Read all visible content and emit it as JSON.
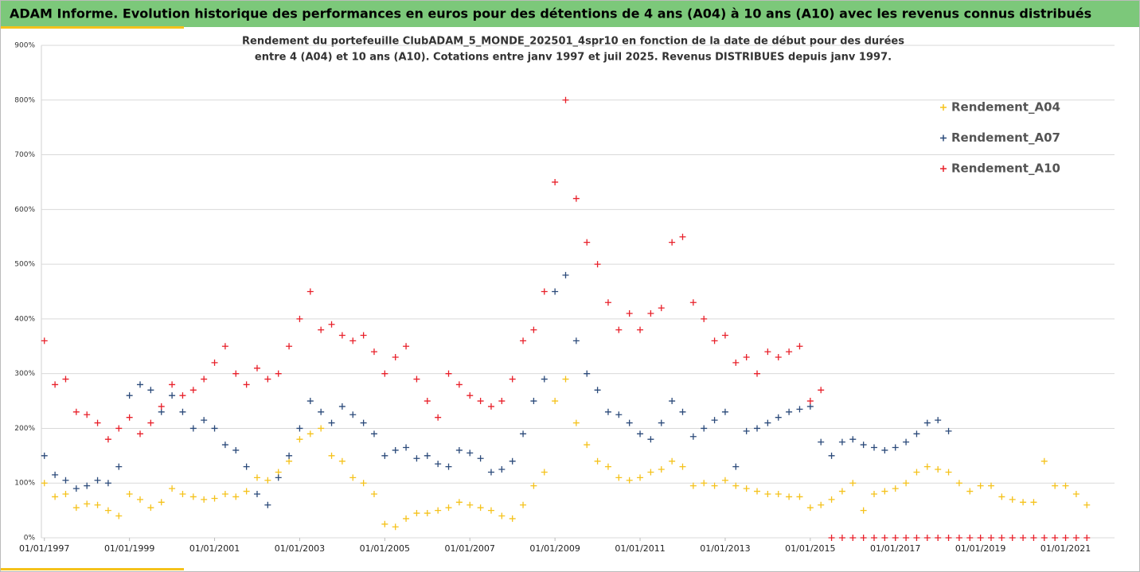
{
  "chart_data": {
    "type": "scatter",
    "title": "ADAM Informe. Evolution historique des performances en euros pour des détentions de 4 ans (A04) à 10 ans (A10) avec les revenus connus distribués",
    "subtitle": [
      "Rendement du portefeuille ClubADAM_5_MONDE_202501_4spr10  en fonction de la date de début pour des durées",
      "entre 4 (A04) et 10 ans (A10). Cotations entre janv 1997 et juil 2025. Revenus DISTRIBUES depuis janv 1997."
    ],
    "x": [
      1997,
      1997.25,
      1997.5,
      1997.75,
      1998,
      1998.25,
      1998.5,
      1998.75,
      1999,
      1999.25,
      1999.5,
      1999.75,
      2000,
      2000.25,
      2000.5,
      2000.75,
      2001,
      2001.25,
      2001.5,
      2001.75,
      2002,
      2002.25,
      2002.5,
      2002.75,
      2003,
      2003.25,
      2003.5,
      2003.75,
      2004,
      2004.25,
      2004.5,
      2004.75,
      2005,
      2005.25,
      2005.5,
      2005.75,
      2006,
      2006.25,
      2006.5,
      2006.75,
      2007,
      2007.25,
      2007.5,
      2007.75,
      2008,
      2008.25,
      2008.5,
      2008.75,
      2009,
      2009.25,
      2009.5,
      2009.75,
      2010,
      2010.25,
      2010.5,
      2010.75,
      2011,
      2011.25,
      2011.5,
      2011.75,
      2012,
      2012.25,
      2012.5,
      2012.75,
      2013,
      2013.25,
      2013.5,
      2013.75,
      2014,
      2014.25,
      2014.5,
      2014.75,
      2015,
      2015.25,
      2015.5,
      2015.75,
      2016,
      2016.25,
      2016.5,
      2016.75,
      2017,
      2017.25,
      2017.5,
      2017.75,
      2018,
      2018.25,
      2018.5,
      2018.75,
      2019,
      2019.25,
      2019.5,
      2019.75,
      2020,
      2020.25,
      2020.5,
      2020.75,
      2021,
      2021.25,
      2021.5
    ],
    "series": [
      {
        "name": "Rendement_A04",
        "color": "#f5c21b",
        "values": [
          100,
          75,
          80,
          55,
          62,
          60,
          50,
          40,
          80,
          70,
          55,
          65,
          90,
          80,
          75,
          70,
          72,
          80,
          75,
          85,
          110,
          105,
          120,
          140,
          180,
          190,
          200,
          150,
          140,
          110,
          100,
          80,
          25,
          20,
          35,
          45,
          45,
          50,
          55,
          65,
          60,
          55,
          50,
          40,
          35,
          60,
          95,
          120,
          250,
          290,
          210,
          170,
          140,
          130,
          110,
          105,
          110,
          120,
          125,
          140,
          130,
          95,
          100,
          95,
          105,
          95,
          90,
          85,
          80,
          80,
          75,
          75,
          55,
          60,
          70,
          85,
          100,
          50,
          80,
          85,
          90,
          100,
          120,
          130,
          125,
          120,
          100,
          85,
          95,
          95,
          75,
          70,
          65,
          65,
          140,
          95,
          95,
          80,
          60
        ]
      },
      {
        "name": "Rendement_A07",
        "color": "#2b4a7a",
        "values": [
          150,
          115,
          105,
          90,
          95,
          105,
          100,
          130,
          260,
          280,
          270,
          230,
          260,
          230,
          200,
          215,
          200,
          170,
          160,
          130,
          80,
          60,
          110,
          150,
          200,
          250,
          230,
          210,
          240,
          225,
          210,
          190,
          150,
          160,
          165,
          145,
          150,
          135,
          130,
          160,
          155,
          145,
          120,
          125,
          140,
          190,
          250,
          290,
          450,
          480,
          360,
          300,
          270,
          230,
          225,
          210,
          190,
          180,
          210,
          250,
          230,
          185,
          200,
          215,
          230,
          130,
          195,
          200,
          210,
          220,
          230,
          235,
          240,
          175,
          150,
          175,
          180,
          170,
          165,
          160,
          165,
          175,
          190,
          210,
          215,
          195,
          null,
          null,
          null,
          null,
          null,
          null,
          null,
          null,
          null,
          null,
          null,
          null,
          null
        ]
      },
      {
        "name": "Rendement_A10",
        "color": "#e8202a",
        "values": [
          360,
          280,
          290,
          230,
          225,
          210,
          180,
          200,
          220,
          190,
          210,
          240,
          280,
          260,
          270,
          290,
          320,
          350,
          300,
          280,
          310,
          290,
          300,
          350,
          400,
          450,
          380,
          390,
          370,
          360,
          370,
          340,
          300,
          330,
          350,
          290,
          250,
          220,
          300,
          280,
          260,
          250,
          240,
          250,
          290,
          360,
          380,
          450,
          650,
          800,
          620,
          540,
          500,
          430,
          380,
          410,
          380,
          410,
          420,
          540,
          550,
          430,
          400,
          360,
          370,
          320,
          330,
          300,
          340,
          330,
          340,
          350,
          250,
          270,
          0,
          0,
          0,
          0,
          0,
          0,
          0,
          0,
          0,
          0,
          0,
          0,
          0,
          0,
          0,
          0,
          0,
          0,
          0,
          0,
          0,
          0,
          0,
          0,
          0
        ]
      }
    ],
    "xlim": [
      1996.93,
      2022.15
    ],
    "xticks": [
      {
        "value": 1997,
        "label": "01/01/1997"
      },
      {
        "value": 1999,
        "label": "01/01/1999"
      },
      {
        "value": 2001,
        "label": "01/01/2001"
      },
      {
        "value": 2003,
        "label": "01/01/2003"
      },
      {
        "value": 2005,
        "label": "01/01/2005"
      },
      {
        "value": 2007,
        "label": "01/01/2007"
      },
      {
        "value": 2009,
        "label": "01/01/2009"
      },
      {
        "value": 2011,
        "label": "01/01/2011"
      },
      {
        "value": 2013,
        "label": "01/01/2013"
      },
      {
        "value": 2015,
        "label": "01/01/2015"
      },
      {
        "value": 2017,
        "label": "01/01/2017"
      },
      {
        "value": 2019,
        "label": "01/01/2019"
      },
      {
        "value": 2021,
        "label": "01/01/2021"
      }
    ],
    "ylim": [
      0,
      900
    ],
    "yticks": [
      {
        "value": 0,
        "label": "0%"
      },
      {
        "value": 100,
        "label": "100%"
      },
      {
        "value": 200,
        "label": "200%"
      },
      {
        "value": 300,
        "label": "300%"
      },
      {
        "value": 400,
        "label": "400%"
      },
      {
        "value": 500,
        "label": "500%"
      },
      {
        "value": 600,
        "label": "600%"
      },
      {
        "value": 700,
        "label": "700%"
      },
      {
        "value": 800,
        "label": "800%"
      },
      {
        "value": 900,
        "label": "900%"
      }
    ],
    "grid": true
  }
}
